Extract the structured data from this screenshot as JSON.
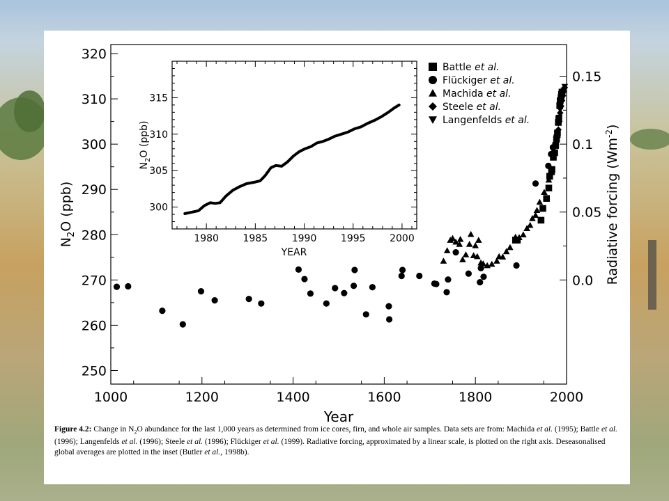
{
  "chart_data": [
    {
      "type": "scatter",
      "xlabel": "Year",
      "ylabel_left": "N2O (ppb)",
      "ylabel_right": "Radiative forcing (Wm-2)",
      "xlim": [
        1000,
        2000
      ],
      "ylim": [
        247,
        322
      ],
      "xticks": [
        "1000",
        "1200",
        "1400",
        "1600",
        "1800",
        "2000"
      ],
      "yticks": [
        "250",
        "260",
        "270",
        "280",
        "290",
        "300",
        "310",
        "320"
      ],
      "right_ticks": [
        {
          "label": "0.0",
          "at": 270
        },
        {
          "label": "0.05",
          "at": 285
        },
        {
          "label": "0.1",
          "at": 300
        },
        {
          "label": "0.15",
          "at": 315
        }
      ],
      "grid": false,
      "legend_position": "top-right",
      "series": [
        {
          "name": "Battle et al.",
          "marker": "square",
          "points": [
            [
              1888,
              278.8
            ],
            [
              1892,
              278.8
            ],
            [
              1944,
              283.2
            ],
            [
              1948,
              285.8
            ],
            [
              1956,
              288.0
            ],
            [
              1961,
              290.3
            ],
            [
              1963,
              292.9
            ],
            [
              1967,
              293.9
            ],
            [
              1968,
              294.4
            ],
            [
              1971,
              297.1
            ],
            [
              1974,
              298.1
            ],
            [
              1976,
              299.7
            ],
            [
              1978,
              301.1
            ],
            [
              1980,
              302.4
            ],
            [
              1982,
              304.8
            ],
            [
              1983,
              305.6
            ],
            [
              1985,
              308.5
            ],
            [
              1986,
              309.6
            ],
            [
              1988,
              310.3
            ],
            [
              1989,
              311.0
            ],
            [
              1990,
              311.5
            ]
          ]
        },
        {
          "name": "Flückiger et al.",
          "marker": "circle",
          "points": [
            [
              1013,
              268.5
            ],
            [
              1038,
              268.6
            ],
            [
              1113,
              263.2
            ],
            [
              1158,
              260.2
            ],
            [
              1198,
              267.5
            ],
            [
              1228,
              265.5
            ],
            [
              1303,
              265.8
            ],
            [
              1330,
              264.8
            ],
            [
              1412,
              272.3
            ],
            [
              1425,
              270.2
            ],
            [
              1438,
              267.0
            ],
            [
              1473,
              264.8
            ],
            [
              1492,
              268.2
            ],
            [
              1512,
              267.1
            ],
            [
              1533,
              268.7
            ],
            [
              1535,
              272.2
            ],
            [
              1560,
              262.4
            ],
            [
              1574,
              268.4
            ],
            [
              1610,
              264.2
            ],
            [
              1611,
              261.3
            ],
            [
              1638,
              270.9
            ],
            [
              1640,
              272.2
            ],
            [
              1677,
              270.9
            ],
            [
              1710,
              269.2
            ],
            [
              1714,
              269.1
            ],
            [
              1737,
              267.3
            ],
            [
              1740,
              270.1
            ],
            [
              1757,
              276.1
            ],
            [
              1785,
              271.4
            ],
            [
              1810,
              269.5
            ],
            [
              1812,
              272.6
            ],
            [
              1818,
              270.7
            ],
            [
              1890,
              273.2
            ],
            [
              1932,
              291.3
            ],
            [
              1960,
              295.2
            ],
            [
              1966,
              297.8
            ],
            [
              1970,
              299.3
            ]
          ]
        },
        {
          "name": "Machida et al.",
          "marker": "triangle",
          "points": [
            [
              1730,
              274.2
            ],
            [
              1738,
              276.5
            ],
            [
              1745,
              278.8
            ],
            [
              1750,
              279.2
            ],
            [
              1757,
              278.4
            ],
            [
              1765,
              277.9
            ],
            [
              1767,
              279.0
            ],
            [
              1772,
              274.5
            ],
            [
              1779,
              275.6
            ],
            [
              1787,
              277.9
            ],
            [
              1790,
              280.1
            ],
            [
              1796,
              275.4
            ],
            [
              1800,
              277.6
            ],
            [
              1804,
              275.2
            ],
            [
              1807,
              278.8
            ],
            [
              1812,
              273.8
            ],
            [
              1817,
              273.6
            ],
            [
              1826,
              273.2
            ],
            [
              1836,
              273.5
            ],
            [
              1847,
              274.2
            ],
            [
              1852,
              275.2
            ],
            [
              1860,
              275.1
            ],
            [
              1868,
              276.3
            ],
            [
              1876,
              277.2
            ],
            [
              1888,
              279.5
            ],
            [
              1896,
              279.4
            ],
            [
              1905,
              280.0
            ],
            [
              1913,
              281.4
            ],
            [
              1920,
              282.1
            ],
            [
              1925,
              283.6
            ],
            [
              1932,
              284.3
            ],
            [
              1935,
              285.4
            ],
            [
              1941,
              287.2
            ],
            [
              1951,
              289.4
            ],
            [
              1961,
              292.1
            ]
          ]
        },
        {
          "name": "Steele et al.",
          "marker": "diamond",
          "points": [
            [
              1978,
              300.8
            ],
            [
              1980,
              301.5
            ],
            [
              1982,
              303.2
            ],
            [
              1984,
              305.0
            ],
            [
              1986,
              306.9
            ],
            [
              1988,
              308.4
            ],
            [
              1990,
              309.6
            ],
            [
              1992,
              310.7
            ],
            [
              1994,
              311.6
            ],
            [
              1996,
              312.5
            ]
          ]
        },
        {
          "name": "Langenfelds et al.",
          "marker": "triangle-down",
          "points": [
            [
              1978,
              301.5
            ],
            [
              1980,
              302.6
            ],
            [
              1982,
              304.6
            ],
            [
              1984,
              305.9
            ],
            [
              1986,
              307.6
            ],
            [
              1988,
              309.2
            ],
            [
              1990,
              310.3
            ],
            [
              1992,
              311.0
            ],
            [
              1994,
              311.9
            ],
            [
              1996,
              312.7
            ]
          ]
        }
      ]
    },
    {
      "type": "line",
      "xlabel": "YEAR",
      "ylabel": "N2O (ppb)",
      "xlim": [
        1976.5,
        2001.5
      ],
      "ylim": [
        297,
        320
      ],
      "xticks": [
        "1980",
        "1985",
        "1990",
        "1995",
        "2000"
      ],
      "yticks": [
        "300",
        "305",
        "310",
        "315"
      ],
      "series": [
        {
          "x": [
            1977.8,
            1978.5,
            1979.2,
            1979.8,
            1980.4,
            1980.9,
            1981.4,
            1982.0,
            1982.7,
            1983.4,
            1984.1,
            1984.9,
            1985.5,
            1986.0,
            1986.6,
            1987.1,
            1987.7,
            1988.3,
            1988.9,
            1989.5,
            1990.1,
            1990.7,
            1991.3,
            1991.9,
            1992.5,
            1993.1,
            1993.8,
            1994.5,
            1995.1,
            1995.8,
            1996.5,
            1997.2,
            1997.9,
            1998.6,
            1999.2,
            1999.7
          ],
          "y": [
            299.1,
            299.3,
            299.5,
            300.2,
            300.6,
            300.5,
            300.6,
            301.5,
            302.3,
            302.8,
            303.2,
            303.4,
            303.6,
            304.3,
            305.4,
            305.7,
            305.6,
            306.2,
            307.0,
            307.6,
            308.0,
            308.3,
            308.8,
            309.0,
            309.3,
            309.7,
            310.0,
            310.3,
            310.7,
            311.0,
            311.5,
            311.9,
            312.4,
            313.0,
            313.6,
            314.0
          ]
        }
      ]
    }
  ],
  "legend": [
    {
      "symbol": "■",
      "name": "Battle",
      "suffix": "et al."
    },
    {
      "symbol": "●",
      "name": "Flückiger",
      "suffix": "et al."
    },
    {
      "symbol": "▲",
      "name": "Machida",
      "suffix": "et al."
    },
    {
      "symbol": "◆",
      "name": "Steele",
      "suffix": "et al."
    },
    {
      "symbol": "▼",
      "name": "Langenfelds",
      "suffix": "et al."
    }
  ],
  "caption": {
    "label": "Figure 4.2:",
    "line1": " Change in N",
    "sub": "2",
    "line1b": "O abundance for the last 1,000 years as determined from ice cores, firn, and whole air samples. Data sets are from: Machida ",
    "etal": "et al.",
    "line2": " (1995); Battle ",
    "line3": " (1996); Langenfelds ",
    "line4": " (1996); Steele ",
    "line5": " (1996); Flückiger ",
    "line6": " (1999). Radiative forcing, approximated by a linear scale, is plotted on the right axis. Deseasonalised global averages are plotted in the inset (Butler ",
    "line7": ", 1998b)."
  },
  "colors": {
    "ink": "#000000",
    "panel": "#ffffff"
  }
}
